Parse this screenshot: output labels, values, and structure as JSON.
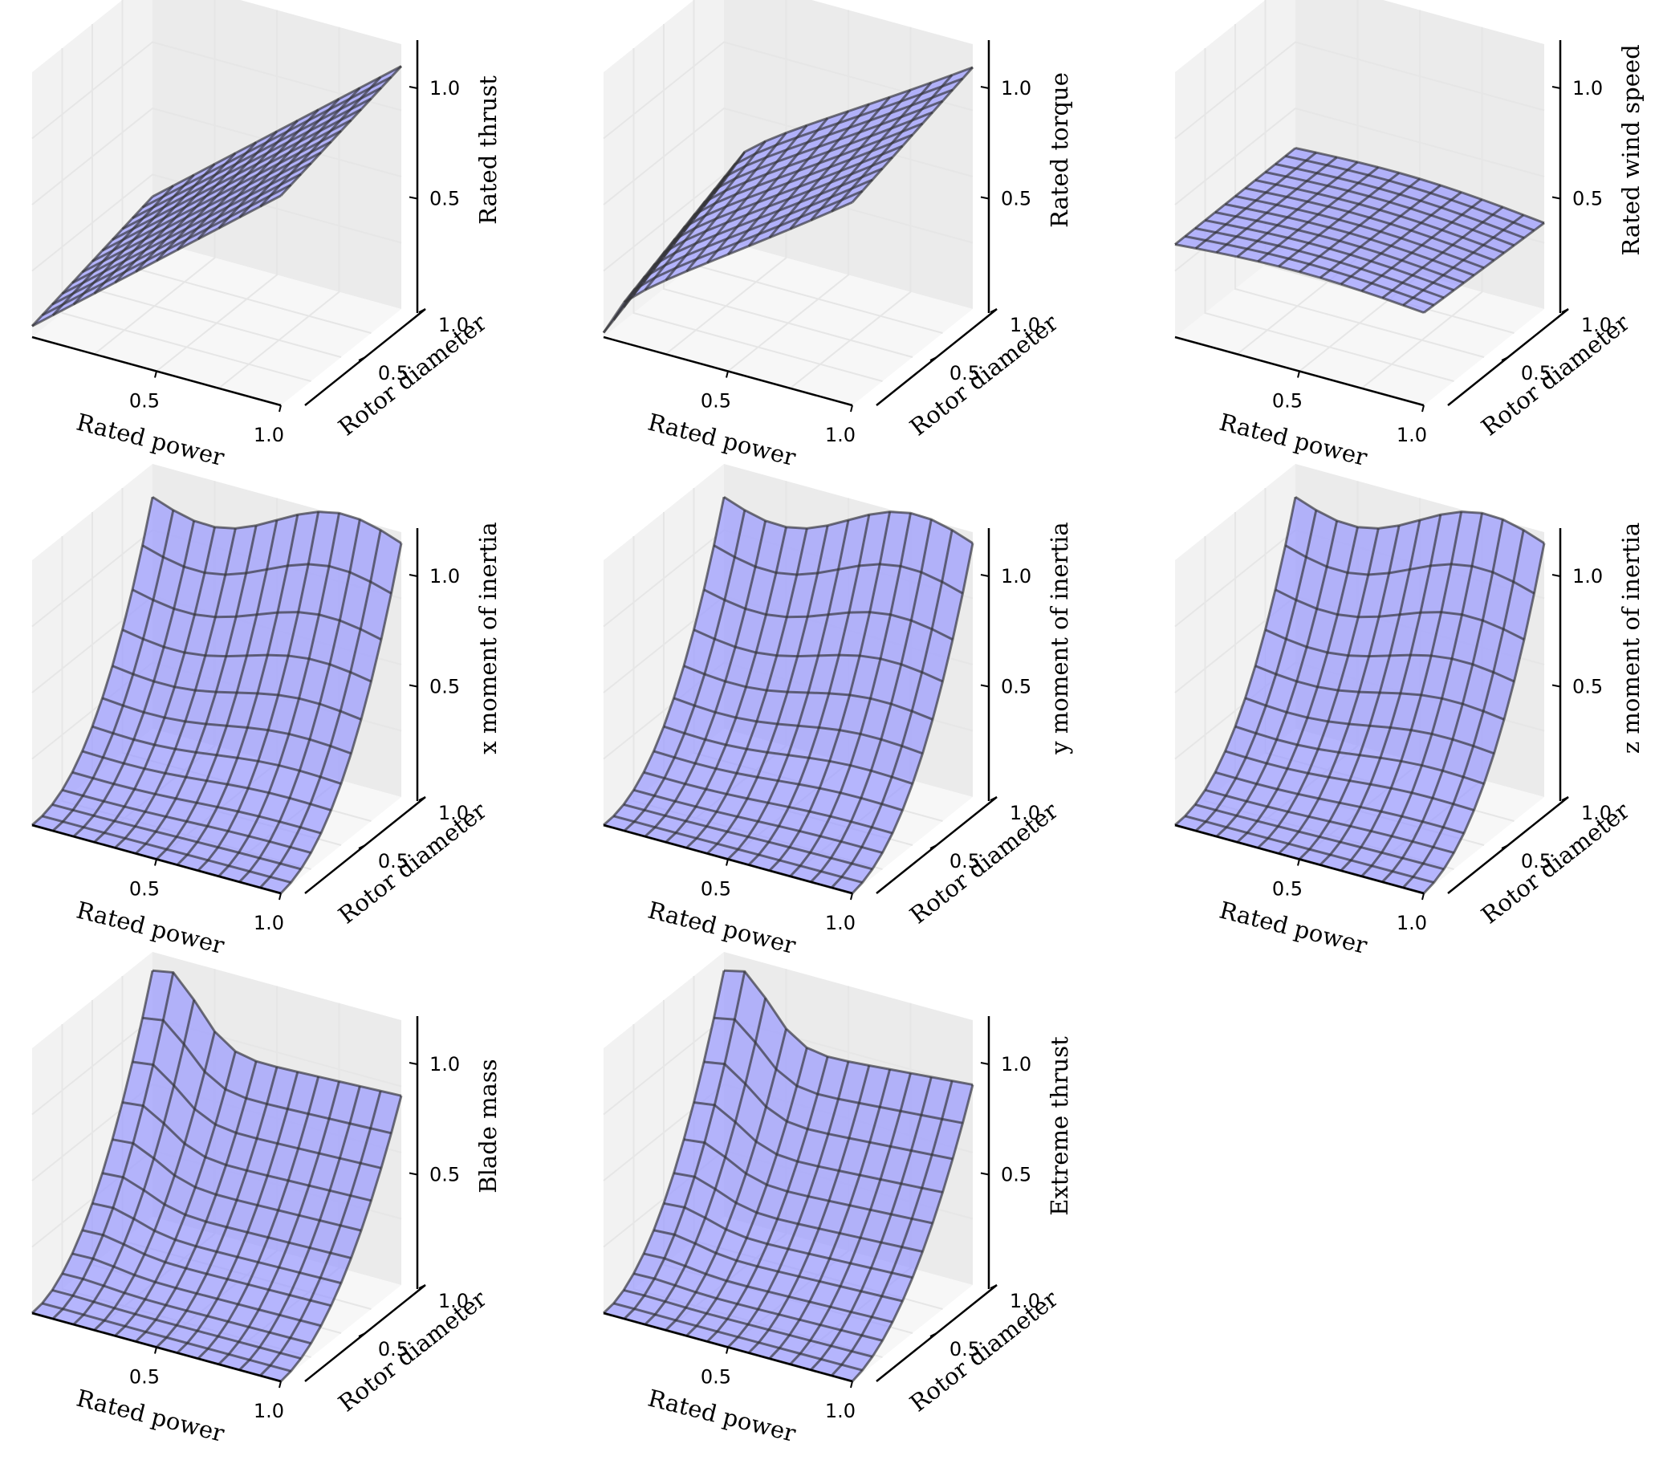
{
  "figure": {
    "x_axis_label": "Rated power",
    "y_axis_label": "Rotor diameter",
    "x_ticks": [
      "0.5",
      "1.0"
    ],
    "y_ticks": [
      "0.5",
      "1.0"
    ],
    "z_ticks": [
      "0.5",
      "1.0"
    ],
    "surface_color": "#9999ff",
    "wire_color": "#333333",
    "pane_color": "#f2f2f2",
    "grid_color": "#e6e6e6"
  },
  "chart_data": [
    {
      "type": "surface",
      "zlabel": "Rated thrust",
      "xlim": [
        0,
        1
      ],
      "ylim": [
        0,
        1
      ],
      "zlim": [
        0,
        1.2
      ],
      "grid": true,
      "surface": {
        "shape": "linear-x",
        "base": 0.05,
        "slope_x": 0.9,
        "slope_y": 0.15
      }
    },
    {
      "type": "surface",
      "zlabel": "Rated torque",
      "xlim": [
        0,
        1
      ],
      "ylim": [
        0,
        1
      ],
      "zlim": [
        0,
        1.2
      ],
      "grid": true,
      "surface": {
        "shape": "concave-x",
        "base": 0.02,
        "slope_x": 0.9,
        "slope_y": 0.25
      }
    },
    {
      "type": "surface",
      "zlabel": "Rated wind speed",
      "xlim": [
        0,
        1
      ],
      "ylim": [
        0,
        1
      ],
      "zlim": [
        0,
        1.2
      ],
      "grid": true,
      "surface": {
        "shape": "flat",
        "base": 0.42,
        "slope_x": 0.03,
        "slope_y": -0.03
      }
    },
    {
      "type": "surface",
      "zlabel": "x moment of inertia",
      "xlim": [
        0,
        1
      ],
      "ylim": [
        0,
        1
      ],
      "zlim": [
        0,
        1.2
      ],
      "grid": true,
      "surface": {
        "shape": "steep-y",
        "base": 0.0,
        "slope_x": 0.1,
        "slope_y": 1.05
      }
    },
    {
      "type": "surface",
      "zlabel": "y moment of inertia",
      "xlim": [
        0,
        1
      ],
      "ylim": [
        0,
        1
      ],
      "zlim": [
        0,
        1.2
      ],
      "grid": true,
      "surface": {
        "shape": "steep-y",
        "base": 0.0,
        "slope_x": 0.1,
        "slope_y": 1.05
      }
    },
    {
      "type": "surface",
      "zlabel": "z moment of inertia",
      "xlim": [
        0,
        1
      ],
      "ylim": [
        0,
        1
      ],
      "zlim": [
        0,
        1.2
      ],
      "grid": true,
      "surface": {
        "shape": "steep-y",
        "base": 0.0,
        "slope_x": 0.1,
        "slope_y": 1.05
      }
    },
    {
      "type": "surface",
      "zlabel": "Blade mass",
      "xlim": [
        0,
        1
      ],
      "ylim": [
        0,
        1
      ],
      "zlim": [
        0,
        1.2
      ],
      "grid": true,
      "surface": {
        "shape": "peak-y",
        "base": 0.0,
        "slope_x": 0.05,
        "slope_y": 0.95
      }
    },
    {
      "type": "surface",
      "zlabel": "Extreme thrust",
      "xlim": [
        0,
        1
      ],
      "ylim": [
        0,
        1
      ],
      "zlim": [
        0,
        1.2
      ],
      "grid": true,
      "surface": {
        "shape": "peak-y",
        "base": 0.0,
        "slope_x": 0.1,
        "slope_y": 0.95
      }
    }
  ]
}
